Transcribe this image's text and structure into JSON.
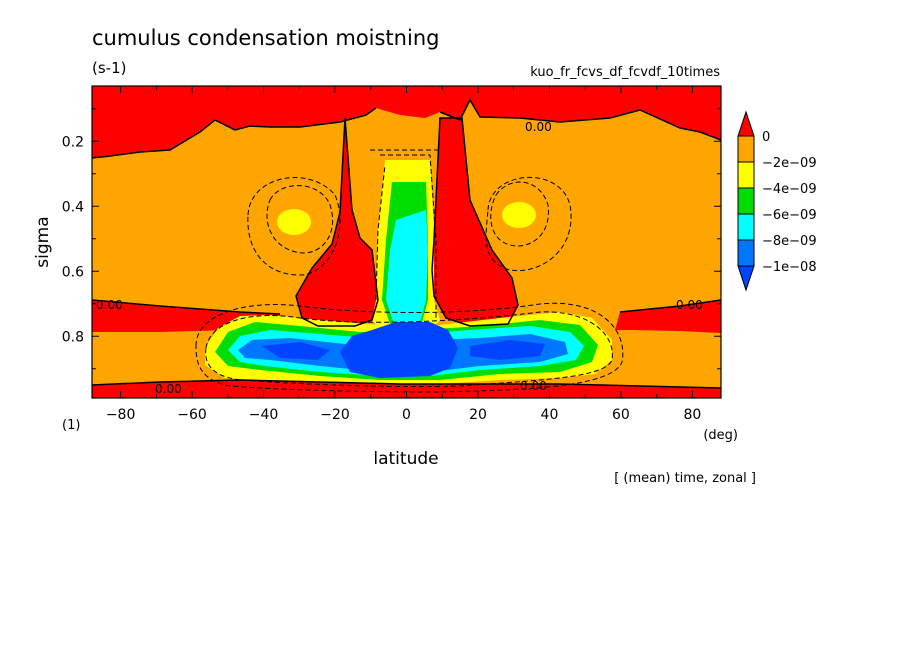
{
  "chart_data": {
    "type": "heatmap",
    "title": "cumulus condensation moistning",
    "units": "(s-1)",
    "run_label": "kuo_fr_fcvs_df_fcvdf_10times",
    "xlabel": "latitude",
    "xunit": "(deg)",
    "ylabel": "sigma",
    "panel_label": "(1)",
    "footer": "[ (mean) time, zonal ]",
    "xlim": [
      -88,
      88
    ],
    "ylim": [
      0.99,
      0.03
    ],
    "x_ticks": [
      -80,
      -60,
      -40,
      -20,
      0,
      20,
      40,
      60,
      80
    ],
    "x_tick_labels": [
      "−80",
      "−60",
      "−40",
      "−20",
      "0",
      "20",
      "40",
      "60",
      "80"
    ],
    "y_ticks": [
      0.2,
      0.4,
      0.6,
      0.8
    ],
    "y_tick_labels": [
      "0.2",
      "0.4",
      "0.6",
      "0.8"
    ],
    "legend": {
      "position": "right",
      "labels": [
        "0",
        "−2e−09",
        "−4e−09",
        "−6e−09",
        "−8e−09",
        "−1e−08"
      ],
      "colors": [
        "#ff0000",
        "#ffa500",
        "#ffff00",
        "#00dd00",
        "#00ffff",
        "#0077ff",
        "#0044ff"
      ]
    },
    "contour_labels": [
      {
        "text": "0.00",
        "x": -78,
        "y": 0.7
      },
      {
        "text": "0.00",
        "x": 77,
        "y": 0.7
      },
      {
        "text": "0.00",
        "x": 40,
        "y": 0.14
      },
      {
        "text": "0.00",
        "x": -71,
        "y": 0.96
      },
      {
        "text": "0.00",
        "x": 36,
        "y": 0.955
      }
    ],
    "levels_filled": [
      {
        "range": "> 0",
        "color": "#ff0000"
      },
      {
        "range": "-2e-09 to 0",
        "color": "#ffa500"
      },
      {
        "range": "-4e-09 to -2e-09",
        "color": "#ffff00"
      },
      {
        "range": "-6e-09 to -4e-09",
        "color": "#00dd00"
      },
      {
        "range": "-8e-09 to -6e-09",
        "color": "#00ffff"
      },
      {
        "range": "-1e-08 to -8e-09",
        "color": "#0077ff"
      },
      {
        "range": "< -1e-08",
        "color": "#0044ff"
      }
    ]
  }
}
